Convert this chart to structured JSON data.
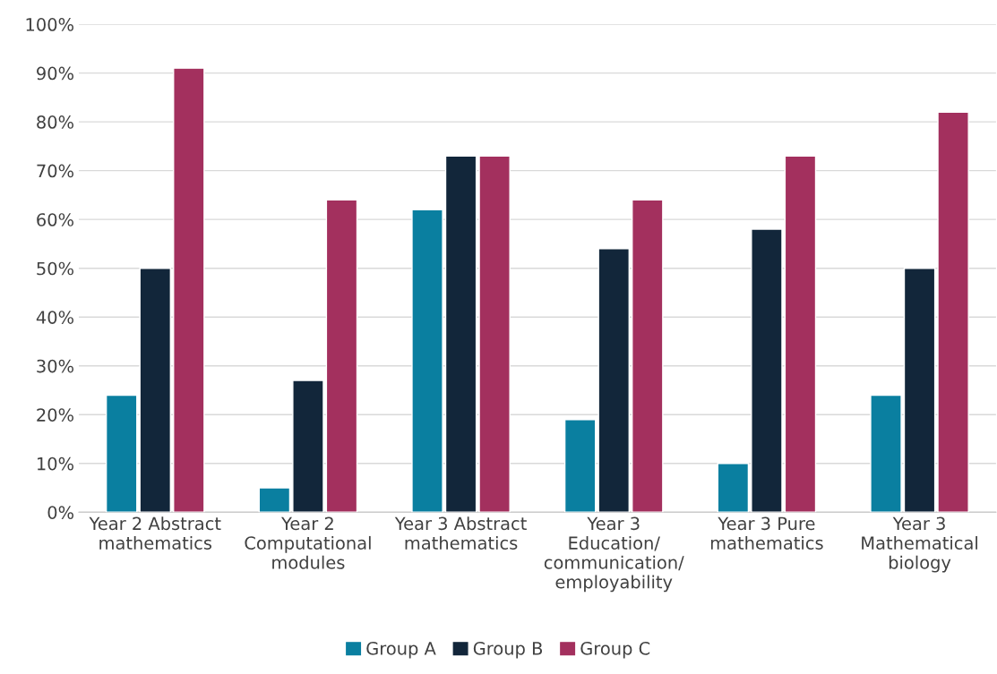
{
  "chart_data": {
    "type": "bar",
    "categories": [
      "Year 2 Abstract\nmathematics",
      "Year 2\nComputational\nmodules",
      "Year 3 Abstract\nmathematics",
      "Year 3\nEducation/\ncommunication/\nemployability",
      "Year 3 Pure\nmathematics",
      "Year 3\nMathematical\nbiology"
    ],
    "series": [
      {
        "name": "Group A",
        "color": "#0a7fa0",
        "values": [
          24,
          5,
          62,
          19,
          10,
          24
        ]
      },
      {
        "name": "Group B",
        "color": "#12263a",
        "values": [
          50,
          27,
          73,
          54,
          58,
          50
        ]
      },
      {
        "name": "Group C",
        "color": "#a3305e",
        "values": [
          91,
          64,
          73,
          64,
          73,
          82
        ]
      }
    ],
    "ylim": [
      0,
      100
    ],
    "yticks": [
      {
        "value": 0,
        "label": "0%"
      },
      {
        "value": 10,
        "label": "10%"
      },
      {
        "value": 20,
        "label": "20%"
      },
      {
        "value": 30,
        "label": "30%"
      },
      {
        "value": 40,
        "label": "40%"
      },
      {
        "value": 50,
        "label": "50%"
      },
      {
        "value": 60,
        "label": "60%"
      },
      {
        "value": 70,
        "label": "70%"
      },
      {
        "value": 80,
        "label": "80%"
      },
      {
        "value": 90,
        "label": "90%"
      },
      {
        "value": 100,
        "label": "100%"
      }
    ],
    "grid": "y",
    "legend": "bottom"
  }
}
